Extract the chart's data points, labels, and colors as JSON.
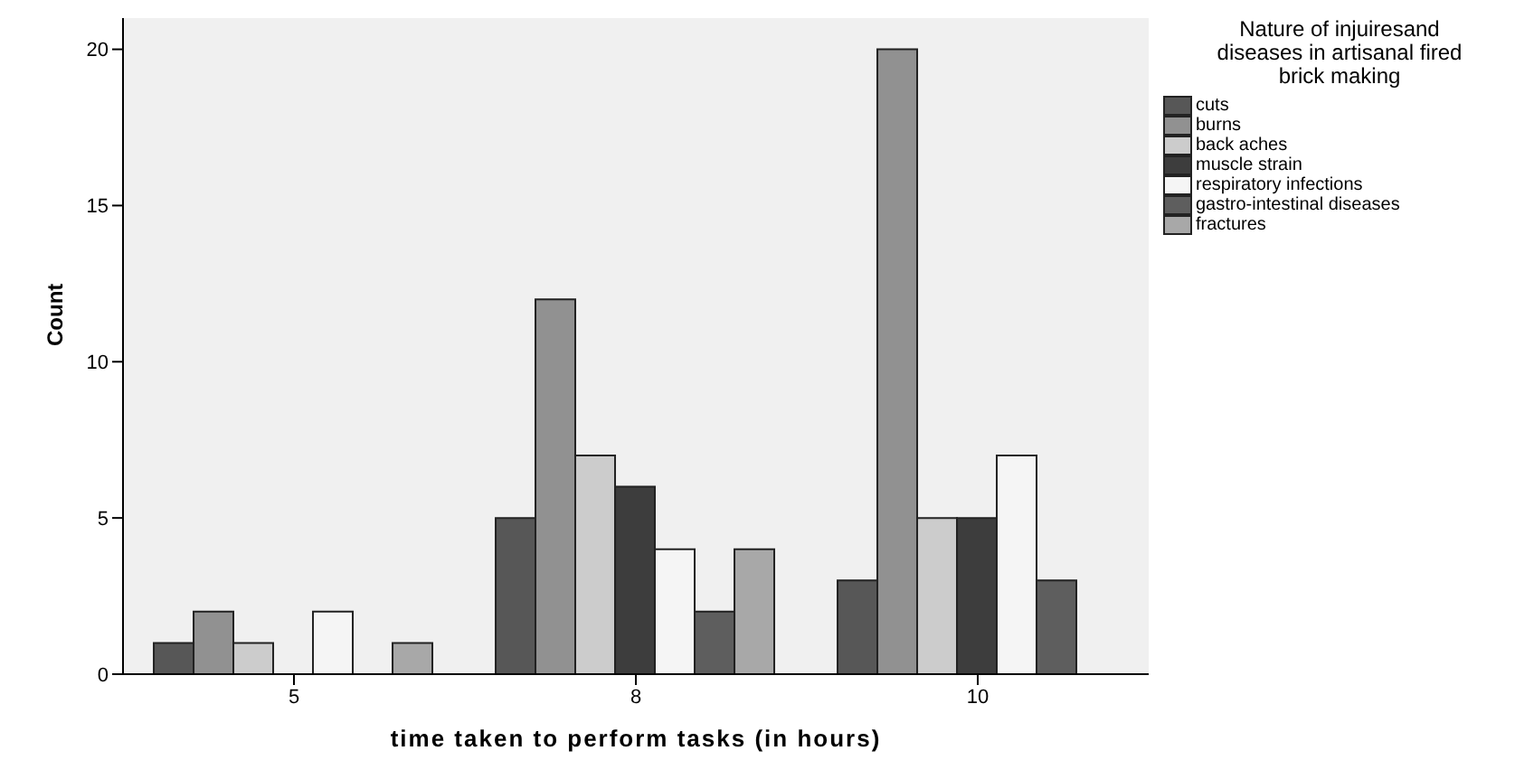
{
  "chart_data": {
    "type": "bar",
    "xlabel": "time taken to perform tasks (in hours)",
    "ylabel": "Count",
    "legend_title": "Nature of injuiresand diseases in artisanal fired brick making",
    "categories": [
      "5",
      "8",
      "10"
    ],
    "series": [
      {
        "name": "cuts",
        "color": "#575757",
        "values": [
          1,
          5,
          3
        ]
      },
      {
        "name": "burns",
        "color": "#919191",
        "values": [
          2,
          12,
          20
        ]
      },
      {
        "name": "back aches",
        "color": "#cccccc",
        "values": [
          1,
          7,
          5
        ]
      },
      {
        "name": "muscle strain",
        "color": "#3d3d3d",
        "values": [
          null,
          6,
          5
        ]
      },
      {
        "name": "respiratory infections",
        "color": "#f5f5f5",
        "values": [
          2,
          4,
          7
        ]
      },
      {
        "name": "gastro-intestinal diseases",
        "color": "#5e5e5e",
        "values": [
          null,
          2,
          3
        ]
      },
      {
        "name": "fractures",
        "color": "#a8a8a8",
        "values": [
          1,
          4,
          null
        ]
      }
    ],
    "ylim": [
      0,
      21
    ],
    "yticks": [
      0,
      5,
      10,
      15,
      20
    ],
    "grid": false,
    "legend": "top right"
  }
}
